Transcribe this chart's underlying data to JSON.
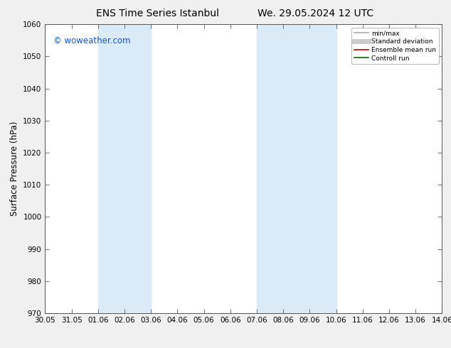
{
  "title_left": "ENS Time Series Istanbul",
  "title_right": "We. 29.05.2024 12 UTC",
  "ylabel": "Surface Pressure (hPa)",
  "xlim": [
    0,
    15
  ],
  "ylim": [
    970,
    1060
  ],
  "yticks": [
    970,
    980,
    990,
    1000,
    1010,
    1020,
    1030,
    1040,
    1050,
    1060
  ],
  "xtick_labels": [
    "30.05",
    "31.05",
    "01.06",
    "02.06",
    "03.06",
    "04.06",
    "05.06",
    "06.06",
    "07.06",
    "08.06",
    "09.06",
    "10.06",
    "11.06",
    "12.06",
    "13.06",
    "14.06"
  ],
  "xtick_positions": [
    0,
    1,
    2,
    3,
    4,
    5,
    6,
    7,
    8,
    9,
    10,
    11,
    12,
    13,
    14,
    15
  ],
  "shaded_regions": [
    {
      "xmin": 2,
      "xmax": 4,
      "color": "#daeaf7"
    },
    {
      "xmin": 8,
      "xmax": 11,
      "color": "#daeaf7"
    }
  ],
  "watermark_text": "© woweather.com",
  "watermark_color": "#1155bb",
  "background_color": "#f0f0f0",
  "plot_bg_color": "#ffffff",
  "grid_color": "#cccccc",
  "legend_entries": [
    {
      "label": "min/max",
      "color": "#aaaaaa",
      "lw": 1.2,
      "style": "solid"
    },
    {
      "label": "Standard deviation",
      "color": "#cccccc",
      "lw": 5,
      "style": "solid"
    },
    {
      "label": "Ensemble mean run",
      "color": "#cc0000",
      "lw": 1.2,
      "style": "solid"
    },
    {
      "label": "Controll run",
      "color": "#006600",
      "lw": 1.2,
      "style": "solid"
    }
  ],
  "title_fontsize": 10,
  "tick_fontsize": 7.5,
  "ylabel_fontsize": 8.5
}
